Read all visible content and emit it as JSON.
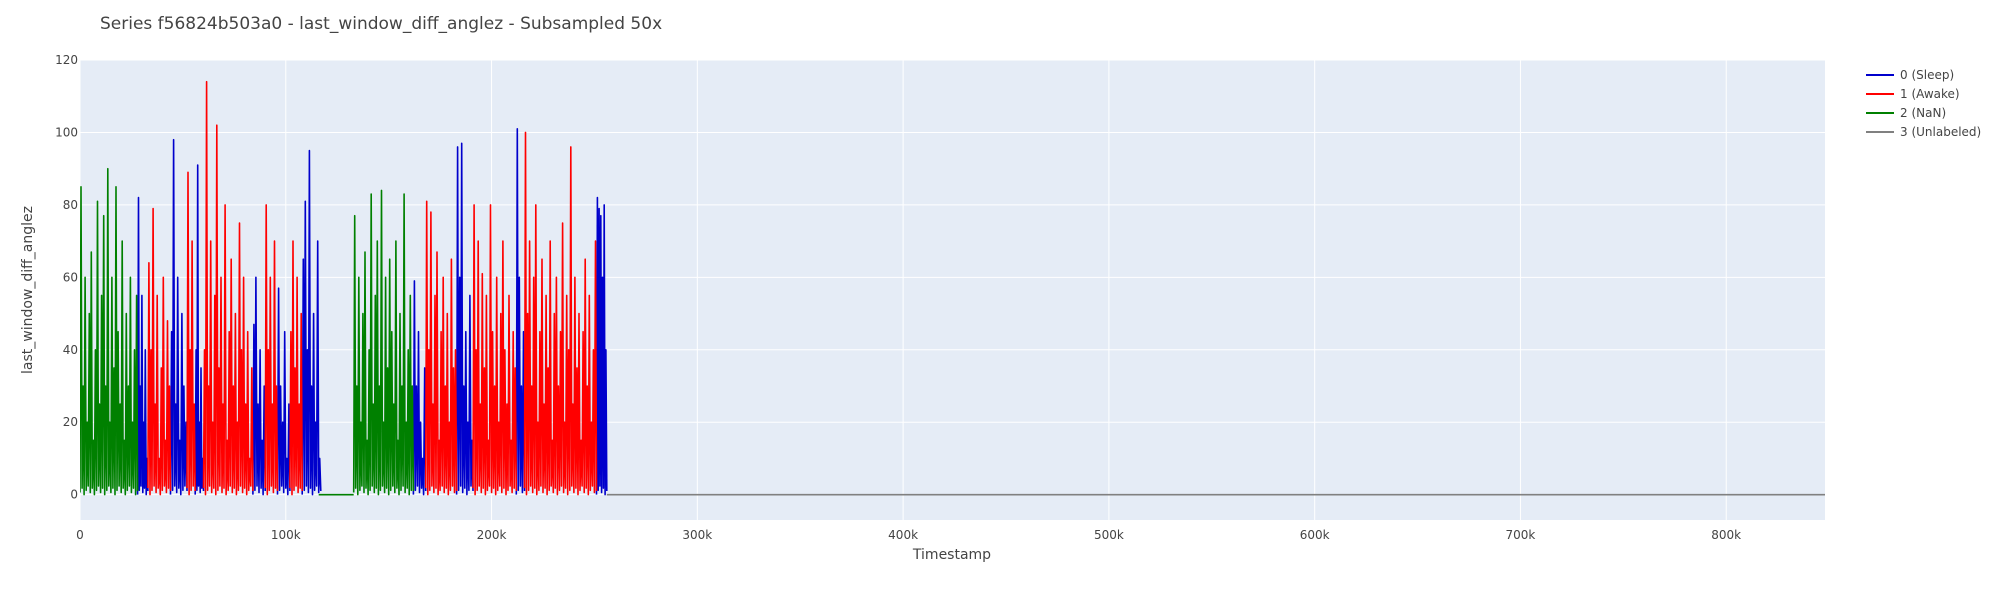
{
  "chart_data": {
    "type": "line",
    "title": "Series f56824b503a0 - last_window_diff_anglez - Subsampled 50x",
    "xlabel": "Timestamp",
    "ylabel": "last_window_diff_anglez",
    "xlim": [
      0,
      848000
    ],
    "ylim": [
      -7,
      120
    ],
    "x_ticks": [
      {
        "value": 0,
        "label": "0"
      },
      {
        "value": 100000,
        "label": "100k"
      },
      {
        "value": 200000,
        "label": "200k"
      },
      {
        "value": 300000,
        "label": "300k"
      },
      {
        "value": 400000,
        "label": "400k"
      },
      {
        "value": 500000,
        "label": "500k"
      },
      {
        "value": 600000,
        "label": "600k"
      },
      {
        "value": 700000,
        "label": "700k"
      },
      {
        "value": 800000,
        "label": "800k"
      }
    ],
    "y_ticks": [
      {
        "value": 0,
        "label": "0"
      },
      {
        "value": 20,
        "label": "20"
      },
      {
        "value": 40,
        "label": "40"
      },
      {
        "value": 60,
        "label": "60"
      },
      {
        "value": 80,
        "label": "80"
      },
      {
        "value": 100,
        "label": "100"
      },
      {
        "value": 120,
        "label": "120"
      }
    ],
    "grid": true,
    "legend_position": "top-right",
    "background": "#e5ecf6",
    "series": [
      {
        "name": "0 (Sleep)",
        "color": "#0000cc",
        "segments": [
          {
            "x_start": 28000,
            "x_end": 33000,
            "peaks": [
              82,
              30,
              55,
              20,
              40,
              10
            ]
          },
          {
            "x_start": 44000,
            "x_end": 52000,
            "peaks": [
              45,
              98,
              25,
              60,
              15,
              50,
              30,
              20
            ]
          },
          {
            "x_start": 56000,
            "x_end": 60000,
            "peaks": [
              40,
              91,
              20,
              35,
              10
            ]
          },
          {
            "x_start": 84000,
            "x_end": 90000,
            "peaks": [
              47,
              60,
              25,
              40,
              15,
              30
            ]
          },
          {
            "x_start": 96000,
            "x_end": 102000,
            "peaks": [
              57,
              30,
              20,
              45,
              10,
              25
            ]
          },
          {
            "x_start": 108000,
            "x_end": 117000,
            "peaks": [
              65,
              81,
              40,
              95,
              30,
              50,
              20,
              70,
              10
            ]
          },
          {
            "x_start": 162000,
            "x_end": 168000,
            "peaks": [
              59,
              30,
              45,
              20,
              10,
              35
            ]
          },
          {
            "x_start": 183000,
            "x_end": 191000,
            "peaks": [
              96,
              60,
              97,
              30,
              45,
              20,
              55,
              15
            ]
          },
          {
            "x_start": 212000,
            "x_end": 216000,
            "peaks": [
              101,
              60,
              30,
              45
            ]
          },
          {
            "x_start": 251000,
            "x_end": 256000,
            "peaks": [
              82,
              79,
              77,
              60,
              80,
              40
            ]
          }
        ],
        "flat": []
      },
      {
        "name": "1 (Awake)",
        "color": "#ff0000",
        "segments": [
          {
            "x_start": 33000,
            "x_end": 44000,
            "peaks": [
              64,
              40,
              79,
              25,
              55,
              10,
              35,
              60,
              15,
              48,
              30
            ]
          },
          {
            "x_start": 52000,
            "x_end": 56000,
            "peaks": [
              89,
              40,
              70,
              25
            ]
          },
          {
            "x_start": 60000,
            "x_end": 84000,
            "peaks": [
              40,
              114,
              30,
              70,
              20,
              55,
              102,
              35,
              60,
              25,
              80,
              15,
              45,
              65,
              30,
              50,
              20,
              75,
              40,
              60,
              25,
              45,
              10,
              35
            ]
          },
          {
            "x_start": 90000,
            "x_end": 96000,
            "peaks": [
              80,
              40,
              60,
              25,
              70,
              30
            ]
          },
          {
            "x_start": 102000,
            "x_end": 108000,
            "peaks": [
              45,
              70,
              35,
              60,
              25,
              50
            ]
          },
          {
            "x_start": 168000,
            "x_end": 183000,
            "peaks": [
              81,
              40,
              78,
              25,
              55,
              67,
              15,
              45,
              60,
              30,
              50,
              20,
              65,
              35,
              40
            ]
          },
          {
            "x_start": 191000,
            "x_end": 212000,
            "peaks": [
              80,
              40,
              70,
              25,
              61,
              35,
              55,
              15,
              80,
              45,
              30,
              60,
              20,
              50,
              70,
              40,
              25,
              55,
              15,
              45,
              35
            ]
          },
          {
            "x_start": 216000,
            "x_end": 251000,
            "peaks": [
              100,
              50,
              70,
              30,
              60,
              80,
              20,
              45,
              65,
              25,
              55,
              35,
              70,
              15,
              50,
              60,
              30,
              45,
              75,
              20,
              55,
              40,
              96,
              25,
              60,
              35,
              50,
              15,
              45,
              65,
              30,
              55,
              20,
              40,
              70
            ]
          }
        ],
        "flat": []
      },
      {
        "name": "2 (NaN)",
        "color": "#008000",
        "segments": [
          {
            "x_start": 0,
            "x_end": 28000,
            "peaks": [
              85,
              30,
              60,
              20,
              50,
              67,
              15,
              40,
              81,
              25,
              55,
              77,
              30,
              90,
              20,
              60,
              35,
              85,
              45,
              25,
              70,
              15,
              50,
              30,
              60,
              20,
              40,
              55
            ]
          },
          {
            "x_start": 133000,
            "x_end": 162000,
            "peaks": [
              77,
              30,
              60,
              20,
              50,
              67,
              15,
              40,
              83,
              25,
              55,
              70,
              30,
              84,
              20,
              60,
              35,
              65,
              45,
              25,
              70,
              15,
              50,
              30,
              83,
              20,
              40,
              55,
              30
            ]
          }
        ],
        "flat": [
          {
            "x_start": 116000,
            "x_end": 133000,
            "value": 0
          }
        ]
      },
      {
        "name": "3 (Unlabeled)",
        "color": "#808080",
        "segments": [],
        "flat": [
          {
            "x_start": 256000,
            "x_end": 848000,
            "value": 0
          }
        ]
      }
    ]
  }
}
